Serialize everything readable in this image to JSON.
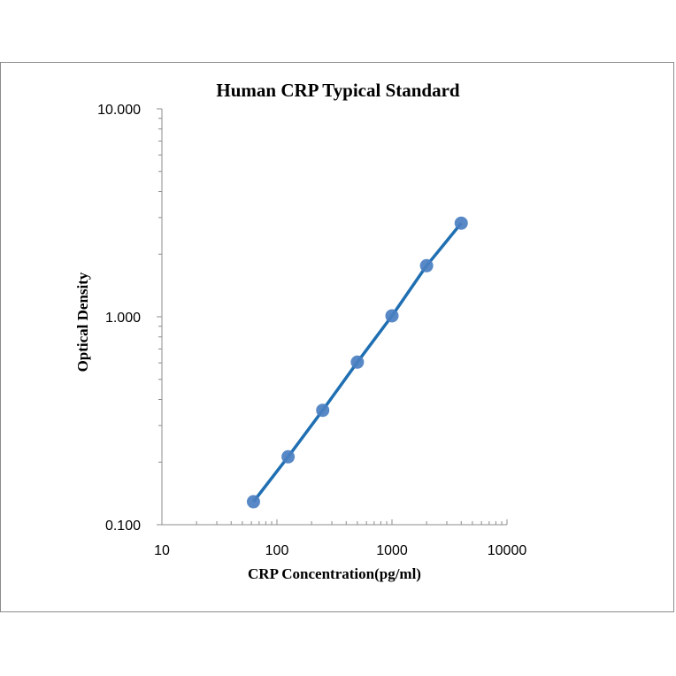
{
  "chart_data": {
    "type": "scatter",
    "title": "Human CRP Typical Standard",
    "xlabel": "CRP Concentration(pg/ml)",
    "ylabel": "Optical Density",
    "xscale": "log",
    "yscale": "log",
    "xlim": [
      10,
      10000
    ],
    "ylim": [
      0.1,
      10
    ],
    "x_ticks": [
      "10",
      "100",
      "1000",
      "10000"
    ],
    "y_ticks": [
      "10.000",
      "1.000",
      "0.100"
    ],
    "grid": false,
    "legend": "none",
    "series": [
      {
        "x": [
          62.5,
          125,
          250,
          500,
          1000,
          2000,
          4000
        ],
        "y": [
          0.129,
          0.212,
          0.355,
          0.605,
          1.01,
          1.76,
          2.82
        ]
      }
    ],
    "colors": {
      "line": "#1f6fb2",
      "marker": "#4a7fc1"
    }
  }
}
